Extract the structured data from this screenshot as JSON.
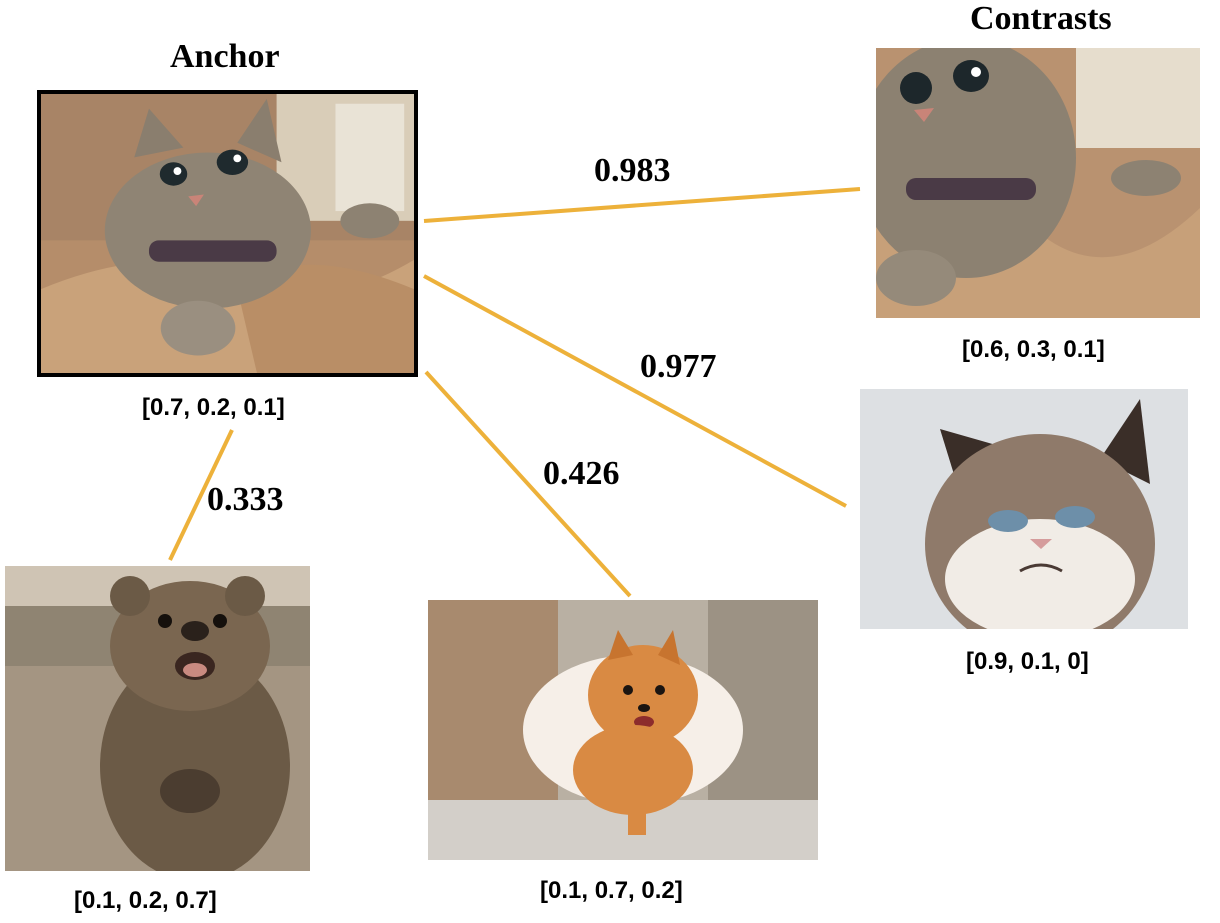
{
  "anchor": {
    "heading": "Anchor",
    "image_subject": "tabby cat lying on brown paper",
    "vector": "[0.7, 0.2, 0.1]"
  },
  "contrasts": {
    "heading": "Contrasts"
  },
  "samples": {
    "tabby_closeup": {
      "image_subject": "tabby cat close-up",
      "vector": "[0.6, 0.3, 0.1]",
      "similarity": "0.983"
    },
    "grumpy_cat": {
      "image_subject": "grumpy-looking cat",
      "vector": "[0.9, 0.1, 0]",
      "similarity": "0.977"
    },
    "pomeranian": {
      "image_subject": "running pomeranian dog",
      "vector": "[0.1, 0.7, 0.2]",
      "similarity": "0.426"
    },
    "quokka": {
      "image_subject": "smiling quokka",
      "vector": "[0.1, 0.2, 0.7]",
      "similarity": "0.333"
    }
  },
  "colors": {
    "connector": "#EDB13A",
    "text": "#000000",
    "frame": "#000000"
  }
}
